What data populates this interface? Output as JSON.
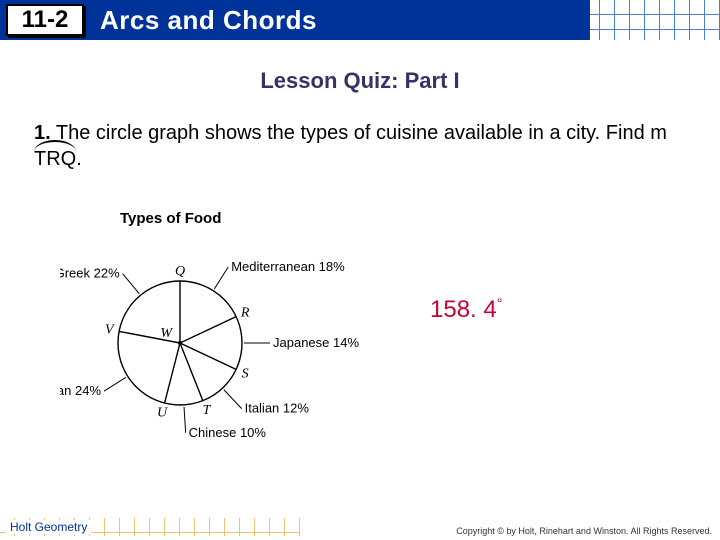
{
  "header": {
    "section_number": "11-2",
    "title": "Arcs and Chords"
  },
  "subtitle": "Lesson Quiz: Part I",
  "problem": {
    "number": "1.",
    "text_a": "The circle graph shows the types of cuisine available in a city. Find m",
    "arc_label": "TRQ",
    "text_b": "."
  },
  "chart": {
    "title": "Types of Food",
    "center_label": "W",
    "slices": [
      {
        "label": "Mediterranean",
        "percent": 18,
        "letter": "Q"
      },
      {
        "label": "Japanese",
        "percent": 14,
        "letter": "R"
      },
      {
        "label": "Italian",
        "percent": 12,
        "letter": "S"
      },
      {
        "label": "Chinese",
        "percent": 10,
        "letter": "T"
      },
      {
        "label": "American",
        "percent": 24,
        "letter": "U"
      },
      {
        "label": "Greek",
        "percent": 22,
        "letter": "V"
      }
    ],
    "start_angle_deg": -90,
    "radius": 62,
    "stroke_color": "#000000",
    "stroke_width": 1.4,
    "fill_color": "#ffffff",
    "label_fontsize": 13,
    "letter_fontsize": 14,
    "letter_font_style": "italic"
  },
  "answer": {
    "value": "158. 4",
    "unit": "°"
  },
  "footer": {
    "brand": "Holt Geometry",
    "copyright": "Copyright © by Holt, Rinehart and Winston. All Rights Reserved."
  },
  "colors": {
    "header_bg": "#003399",
    "header_text": "#ffffff",
    "grid_line": "#4a7fd1",
    "answer": "#cc0033",
    "subtitle": "#333366",
    "footer_grid": "#f2c26b"
  }
}
